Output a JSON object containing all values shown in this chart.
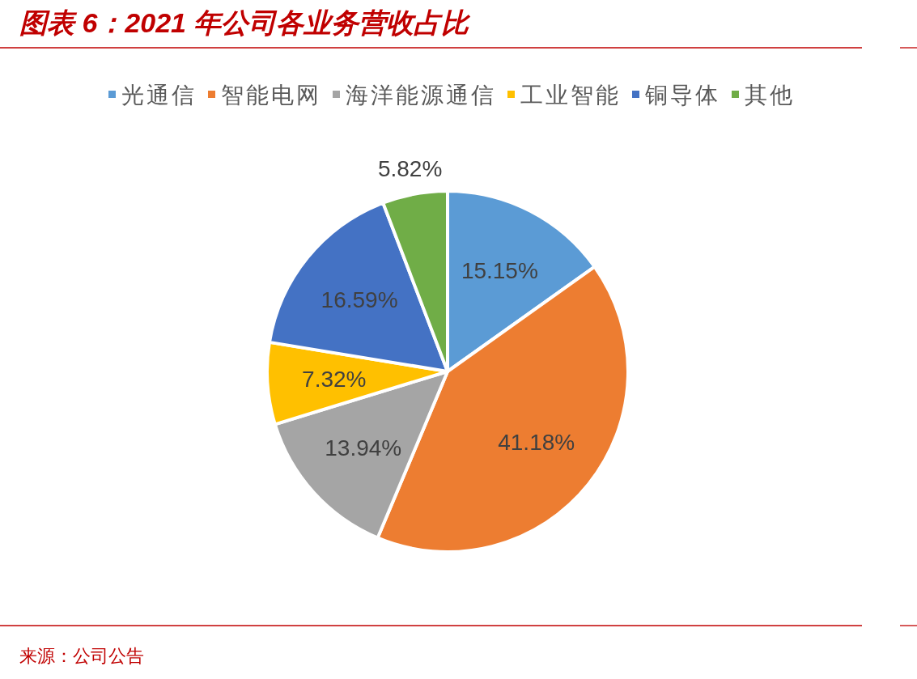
{
  "chart_data": {
    "type": "pie",
    "title": "图表 6：2021 年公司各业务营收占比",
    "categories": [
      "光通信",
      "智能电网",
      "海洋能源通信",
      "工业智能",
      "铜导体",
      "其他"
    ],
    "values": [
      15.15,
      41.18,
      13.94,
      7.32,
      16.59,
      5.82
    ],
    "colors": [
      "#5b9bd5",
      "#ed7d31",
      "#a5a5a5",
      "#ffc000",
      "#4472c4",
      "#70ad47"
    ],
    "value_labels": [
      "15.15%",
      "41.18%",
      "13.94%",
      "7.32%",
      "16.59%",
      "5.82%"
    ],
    "legend": "top",
    "annotations": [
      "来源：公司公告"
    ]
  }
}
